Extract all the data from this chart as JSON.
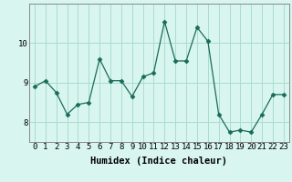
{
  "x": [
    0,
    1,
    2,
    3,
    4,
    5,
    6,
    7,
    8,
    9,
    10,
    11,
    12,
    13,
    14,
    15,
    16,
    17,
    18,
    19,
    20,
    21,
    22,
    23
  ],
  "y": [
    8.9,
    9.05,
    8.75,
    8.2,
    8.45,
    8.5,
    9.6,
    9.05,
    9.05,
    8.65,
    9.15,
    9.25,
    10.55,
    9.55,
    9.55,
    10.4,
    10.05,
    8.2,
    7.75,
    7.8,
    7.75,
    8.2,
    8.7,
    8.7
  ],
  "line_color": "#1a6b5a",
  "marker": "D",
  "marker_size": 2.5,
  "bg_color": "#d8f5f0",
  "grid_color": "#aaddcc",
  "xlabel": "Humidex (Indice chaleur)",
  "ylim": [
    7.5,
    11.0
  ],
  "xlim": [
    -0.5,
    23.5
  ],
  "yticks": [
    8,
    9,
    10
  ],
  "xticks": [
    0,
    1,
    2,
    3,
    4,
    5,
    6,
    7,
    8,
    9,
    10,
    11,
    12,
    13,
    14,
    15,
    16,
    17,
    18,
    19,
    20,
    21,
    22,
    23
  ],
  "xlabel_fontsize": 7.5,
  "tick_fontsize": 6.5
}
